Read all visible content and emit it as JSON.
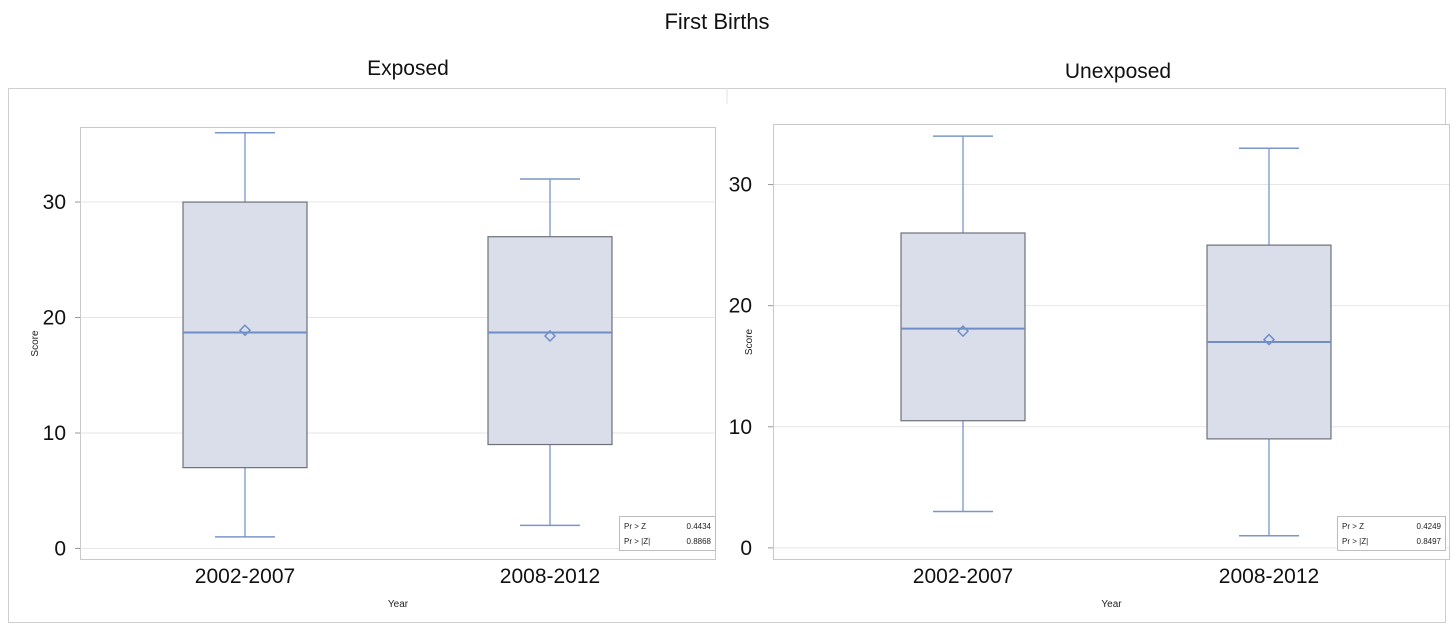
{
  "title": "First Births",
  "chart_data": [
    {
      "type": "box",
      "title": "Exposed",
      "xlabel": "Year",
      "ylabel": "Score",
      "ylim": [
        -1,
        36.5
      ],
      "yticks": [
        0,
        10,
        20,
        30
      ],
      "grid": true,
      "categories": [
        "2002-2007",
        "2008-2012"
      ],
      "boxes": [
        {
          "category": "2002-2007",
          "min": 1,
          "q1": 7,
          "median": 18.7,
          "mean": 18.9,
          "q3": 30,
          "max": 36
        },
        {
          "category": "2008-2012",
          "min": 2,
          "q1": 9,
          "median": 18.7,
          "mean": 18.4,
          "q3": 27,
          "max": 32
        }
      ],
      "stats": [
        {
          "label": "Pr > Z",
          "value": "0.4434"
        },
        {
          "label": "Pr > |Z|",
          "value": "0.8868"
        }
      ]
    },
    {
      "type": "box",
      "title": "Unexposed",
      "xlabel": "Year",
      "ylabel": "Score",
      "ylim": [
        -1,
        35
      ],
      "yticks": [
        0,
        10,
        20,
        30
      ],
      "grid": true,
      "categories": [
        "2002-2007",
        "2008-2012"
      ],
      "boxes": [
        {
          "category": "2002-2007",
          "min": 3,
          "q1": 10.5,
          "median": 18.1,
          "mean": 17.9,
          "q3": 26,
          "max": 34
        },
        {
          "category": "2008-2012",
          "min": 1,
          "q1": 9,
          "median": 17,
          "mean": 17.2,
          "q3": 25,
          "max": 33
        }
      ],
      "stats": [
        {
          "label": "Pr > Z",
          "value": "0.4249"
        },
        {
          "label": "Pr > |Z|",
          "value": "0.8497"
        }
      ]
    }
  ],
  "colors": {
    "box_fill": "#d9deea",
    "box_edge": "#6e7177",
    "whisker": "#7a96c8",
    "median": "#6f8ec7",
    "mean_marker": "#6f8ec7",
    "grid": "#e6e6e6",
    "frame": "#c9c9c9",
    "panel_border": "#cfcfcf"
  }
}
